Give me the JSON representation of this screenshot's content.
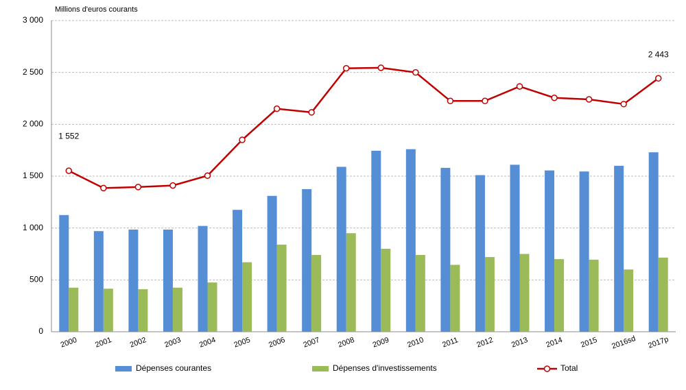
{
  "chart_data": {
    "type": "bar-line",
    "y_axis_label": "Millions d'euros courants",
    "categories": [
      "2000",
      "2001",
      "2002",
      "2003",
      "2004",
      "2005",
      "2006",
      "2007",
      "2008",
      "2009",
      "2010",
      "2011",
      "2012",
      "2013",
      "2014",
      "2015",
      "2016sd",
      "2017p"
    ],
    "series": [
      {
        "name": "Dépenses courantes",
        "type": "bar",
        "color": "#558ed5",
        "values": [
          1125,
          970,
          985,
          985,
          1020,
          1175,
          1310,
          1375,
          1590,
          1745,
          1760,
          1580,
          1510,
          1610,
          1555,
          1545,
          1600,
          1730
        ]
      },
      {
        "name": "Dépenses d'investissements",
        "type": "bar",
        "color": "#9bbb59",
        "values": [
          425,
          415,
          410,
          425,
          475,
          670,
          840,
          740,
          950,
          800,
          740,
          645,
          720,
          750,
          700,
          695,
          600,
          715
        ]
      },
      {
        "name": "Total",
        "type": "line",
        "color": "#c00000",
        "values": [
          1552,
          1385,
          1395,
          1410,
          1505,
          1850,
          2150,
          2115,
          2540,
          2545,
          2500,
          2225,
          2225,
          2365,
          2255,
          2240,
          2195,
          2443
        ],
        "value_labels": [
          "1 552",
          null,
          null,
          null,
          null,
          null,
          null,
          null,
          null,
          null,
          null,
          null,
          null,
          null,
          null,
          null,
          null,
          "2 443"
        ]
      }
    ],
    "ylim": [
      0,
      3000
    ],
    "yticks": [
      0,
      500,
      {
        "value": 1000,
        "label": "1 000"
      },
      {
        "value": 1500,
        "label": "1 500"
      },
      {
        "value": 2000,
        "label": "2 000"
      },
      {
        "value": 2500,
        "label": "2 500"
      },
      {
        "value": 3000,
        "label": "3 000"
      }
    ],
    "grid": true
  }
}
